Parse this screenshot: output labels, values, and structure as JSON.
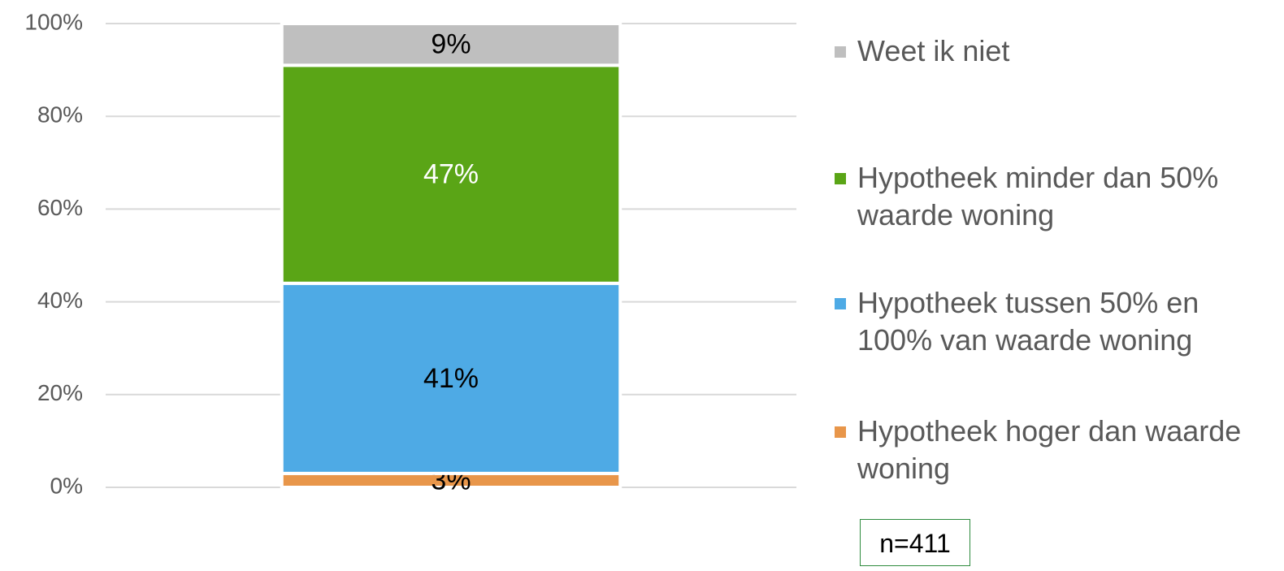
{
  "chart_data": {
    "type": "stacked_bar",
    "categories": [
      null
    ],
    "series": [
      {
        "name": "Hypotheek hoger dan waarde woning",
        "color": "#e8964a",
        "label_color": "#000000",
        "values": [
          3
        ],
        "value_labels": [
          "3%"
        ]
      },
      {
        "name": "Hypotheek tussen 50% en 100% van waarde woning",
        "color": "#4eaae5",
        "label_color": "#000000",
        "values": [
          41
        ],
        "value_labels": [
          "41%"
        ]
      },
      {
        "name": "Hypotheek minder dan 50% waarde woning",
        "color": "#5aa516",
        "label_color": "#ffffff",
        "values": [
          47
        ],
        "value_labels": [
          "47%"
        ]
      },
      {
        "name": "Weet ik niet",
        "color": "#bfbfbf",
        "label_color": "#000000",
        "values": [
          9
        ],
        "value_labels": [
          "9%"
        ]
      }
    ],
    "ylim": [
      0,
      100
    ],
    "yticks": [
      {
        "value": 0,
        "label": "0%"
      },
      {
        "value": 20,
        "label": "20%"
      },
      {
        "value": 40,
        "label": "40%"
      },
      {
        "value": 60,
        "label": "60%"
      },
      {
        "value": 80,
        "label": "80%"
      },
      {
        "value": 100,
        "label": "100%"
      }
    ],
    "grid": true,
    "legend": "right",
    "annotation": "n=411"
  }
}
